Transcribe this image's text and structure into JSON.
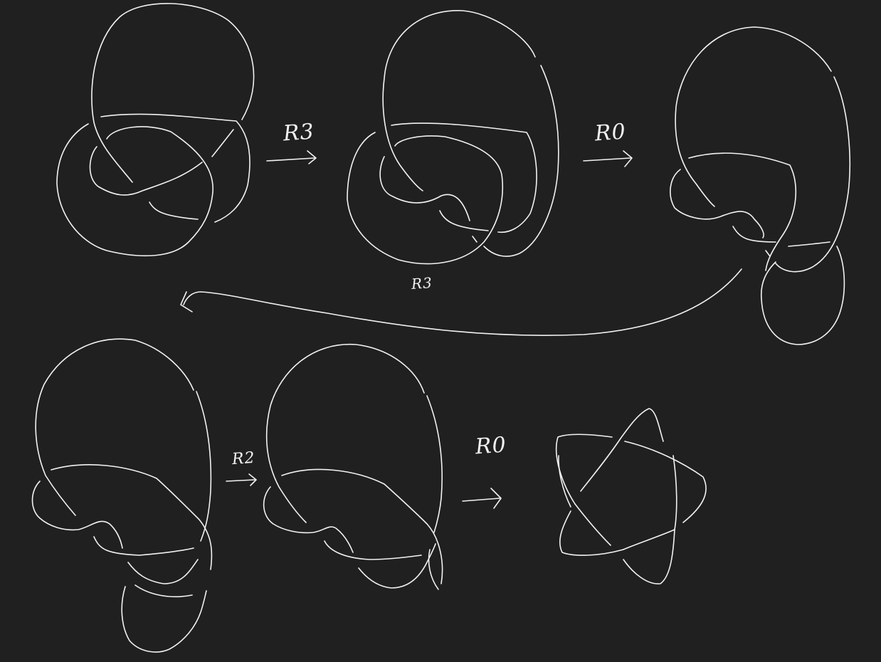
{
  "canvas": {
    "background": "#202020",
    "stroke_color": "#f2f2f2"
  },
  "labels": {
    "move_1": "R3",
    "move_2": "R0",
    "move_3": "R3",
    "move_4": "R2",
    "move_5": "R0"
  }
}
